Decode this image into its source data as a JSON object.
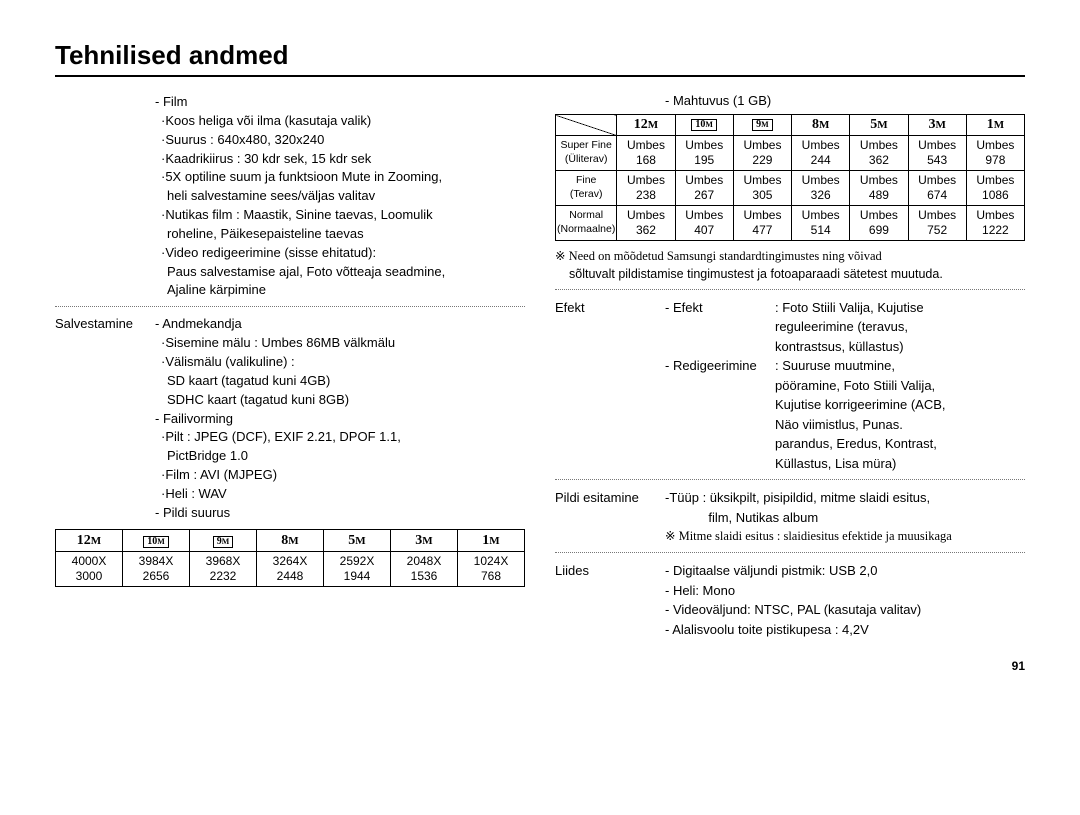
{
  "title": "Tehnilised andmed",
  "page_number": "91",
  "left": {
    "film": {
      "heading": "- Film",
      "lines": [
        "·Koos heliga või ilma (kasutaja valik)",
        "·Suurus : 640x480, 320x240",
        "·Kaadrikiirus : 30 kdr sek, 15 kdr sek",
        "·5X optiline suum ja funktsioon Mute in Zooming,",
        " heli salvestamine sees/väljas valitav",
        "·Nutikas film : Maastik, Sinine taevas, Loomulik",
        "                     roheline, Päikesepaisteline taevas",
        "·Video redigeerimine (sisse ehitatud):",
        " Paus salvestamise ajal, Foto võtteaja seadmine,",
        " Ajaline kärpimine"
      ]
    },
    "salvestamine": {
      "label": "Salvestamine",
      "andmekandja": {
        "heading": "- Andmekandja",
        "lines": [
          "·Sisemine mälu : Umbes 86MB välkmälu",
          "·Välismälu (valikuline) :",
          " SD kaart (tagatud kuni 4GB)",
          " SDHC kaart (tagatud kuni 8GB)"
        ]
      },
      "failivorming": {
        "heading": "- Failivorming",
        "lines": [
          "·Pilt : JPEG (DCF), EXIF 2.21, DPOF 1.1,",
          " PictBridge 1.0",
          "·Film : AVI (MJPEG)",
          "·Heli : WAV"
        ]
      },
      "pildisuurus_heading": "- Pildi suurus"
    },
    "size_table": {
      "headers_raw": [
        "12m",
        "10m_box",
        "9m_box",
        "8m",
        "5m",
        "3m",
        "1m"
      ],
      "headers_boxed": [
        false,
        true,
        true,
        false,
        false,
        false,
        false
      ],
      "headers_num": [
        "12",
        "10",
        "9",
        "8",
        "5",
        "3",
        "1"
      ],
      "row_top": [
        "4000X",
        "3984X",
        "3968X",
        "3264X",
        "2592X",
        "2048X",
        "1024X"
      ],
      "row_bot": [
        "3000",
        "2656",
        "2232",
        "2448",
        "1944",
        "1536",
        "768"
      ]
    }
  },
  "right": {
    "capacity_heading": "- Mahtuvus (1 GB)",
    "capacity_table": {
      "col_headers_num": [
        "12",
        "10",
        "9",
        "8",
        "5",
        "3",
        "1"
      ],
      "col_headers_boxed": [
        false,
        true,
        true,
        false,
        false,
        false,
        false
      ],
      "rows": [
        {
          "label_top": "Super Fine",
          "label_bot": "(Üliterav)",
          "vals": [
            "168",
            "195",
            "229",
            "244",
            "362",
            "543",
            "978"
          ]
        },
        {
          "label_top": "Fine",
          "label_bot": "(Terav)",
          "vals": [
            "238",
            "267",
            "305",
            "326",
            "489",
            "674",
            "1086"
          ]
        },
        {
          "label_top": "Normal",
          "label_bot": "(Normaalne)",
          "vals": [
            "362",
            "407",
            "477",
            "514",
            "699",
            "752",
            "1222"
          ]
        }
      ],
      "cell_prefix": "Umbes"
    },
    "capacity_note1": "※ Need on mõõdetud Samsungi standardtingimustes ning võivad",
    "capacity_note2": "sõltuvalt pildistamise tingimustest ja fotoaparaadi sätetest muutuda.",
    "efekt": {
      "label": "Efekt",
      "efekt_sub": "- Efekt",
      "efekt_text": ": Foto Stiili Valija, Kujutise\n  reguleerimine (teravus,\n  kontrastsus, küllastus)",
      "redig_sub": "- Redigeerimine",
      "redig_text": ": Suuruse muutmine,\n  pööramine, Foto Stiili Valija,\n  Kujutise korrigeerimine (ACB,\n  Näo viimistlus, Punas.\n  parandus, Eredus, Kontrast,\n  Küllastus, Lisa müra)"
    },
    "pildi": {
      "label": "Pildi esitamine",
      "line1": "-Tüüp : üksikpilt, pisipildid, mitme slaidi esitus,",
      "line2": "            film, Nutikas album",
      "line3": "※ Mitme slaidi esitus : slaidiesitus efektide ja muusikaga"
    },
    "liides": {
      "label": "Liides",
      "lines": [
        "- Digitaalse väljundi pistmik: USB 2,0",
        "- Heli: Mono",
        "- Videoväljund: NTSC, PAL (kasutaja valitav)",
        "- Alalisvoolu toite pistikupesa : 4,2V"
      ]
    }
  }
}
